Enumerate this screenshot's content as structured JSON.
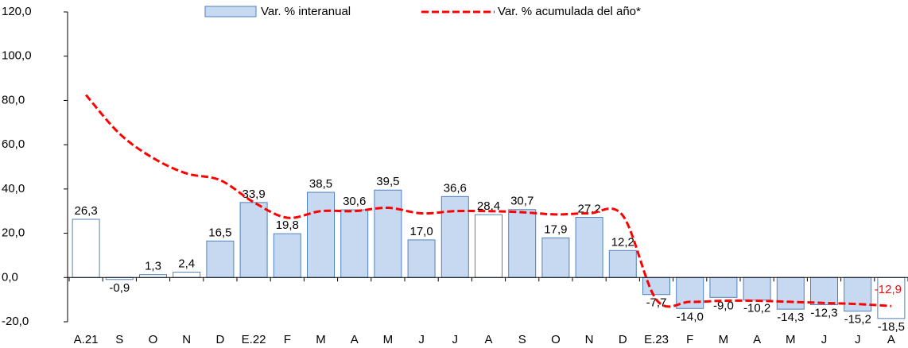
{
  "chart_data": {
    "type": "bar-line",
    "categories": [
      "A.21",
      "S",
      "O",
      "N",
      "D",
      "E.22",
      "F",
      "M",
      "A",
      "M",
      "J",
      "J",
      "A",
      "S",
      "O",
      "N",
      "D",
      "E.23",
      "F",
      "M",
      "A",
      "M",
      "J",
      "J",
      "A"
    ],
    "series": [
      {
        "name": "Var. % interanual",
        "type": "bar",
        "color": "#c6d9f1",
        "edge_color": "#4f81bd",
        "colors": [
          "#ffffff",
          "#ffffff",
          "#ffffff",
          "#ffffff",
          "#c6d9f1",
          "#c6d9f1",
          "#c6d9f1",
          "#c6d9f1",
          "#c6d9f1",
          "#c6d9f1",
          "#c6d9f1",
          "#c6d9f1",
          "#ffffff",
          "#c6d9f1",
          "#c6d9f1",
          "#c6d9f1",
          "#c6d9f1",
          "#c6d9f1",
          "#c6d9f1",
          "#c6d9f1",
          "#c6d9f1",
          "#c6d9f1",
          "#c6d9f1",
          "#c6d9f1",
          "#ffffff"
        ],
        "values": [
          26.3,
          -0.9,
          1.3,
          2.4,
          16.5,
          33.9,
          19.8,
          38.5,
          30.6,
          39.5,
          17.0,
          36.6,
          28.4,
          30.7,
          17.9,
          27.2,
          12.2,
          -7.7,
          -14.0,
          -9.0,
          -10.2,
          -14.3,
          -12.3,
          -15.2,
          -18.5
        ],
        "value_labels": [
          "26,3",
          "-0,9",
          "1,3",
          "2,4",
          "16,5",
          "33,9",
          "19,8",
          "38,5",
          "30,6",
          "39,5",
          "17,0",
          "36,6",
          "28,4",
          "30,7",
          "17,9",
          "27,2",
          "12,2",
          "-7,7",
          "-14,0",
          "-9,0",
          "-10,2",
          "-14,3",
          "-12,3",
          "-15,2",
          "-18,5"
        ]
      },
      {
        "name": "Var. % acumulada del año*",
        "type": "line",
        "color": "#ff0000",
        "values": [
          82.5,
          65,
          54,
          47,
          44,
          34,
          27,
          30,
          30,
          31.5,
          29,
          30,
          30,
          29.5,
          28.5,
          29,
          28,
          -10,
          -11,
          -10.5,
          -10.5,
          -11,
          -11.5,
          -12,
          -12.9
        ],
        "value_labels": [
          null,
          null,
          null,
          null,
          null,
          null,
          null,
          null,
          null,
          null,
          null,
          null,
          null,
          null,
          null,
          null,
          null,
          null,
          null,
          null,
          null,
          null,
          null,
          null,
          "-12,9"
        ]
      }
    ],
    "ylim": [
      -20,
      120
    ],
    "yticks": [
      {
        "value": -20,
        "label": "-20,0"
      },
      {
        "value": 0,
        "label": "0,0"
      },
      {
        "value": 20,
        "label": "20,0"
      },
      {
        "value": 40,
        "label": "40,0"
      },
      {
        "value": 60,
        "label": "60,0"
      },
      {
        "value": 80,
        "label": "80,0"
      },
      {
        "value": 100,
        "label": "100,0"
      },
      {
        "value": 120,
        "label": "120,0"
      }
    ],
    "legend": "top"
  }
}
